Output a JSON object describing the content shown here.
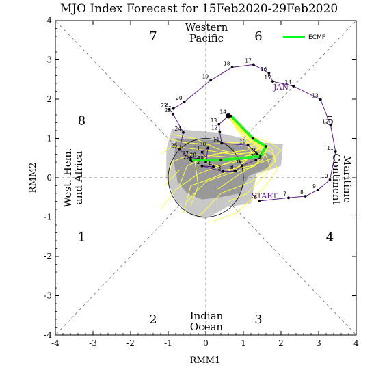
{
  "chart_data": {
    "type": "scatter",
    "title": "MJO Index Forecast for 15Feb2020-29Feb2020",
    "xlabel": "RMM1",
    "ylabel": "RMM2",
    "xlim": [
      -4,
      4
    ],
    "ylim": [
      -4,
      4
    ],
    "xticks": [
      "-4",
      "-3",
      "-2",
      "-1",
      "0",
      "1",
      "2",
      "3",
      "4"
    ],
    "yticks": [
      "-4",
      "-3",
      "-2",
      "-1",
      "0",
      "1",
      "2",
      "3",
      "4"
    ],
    "phase_numbers": [
      {
        "label": "7",
        "x": -1.4,
        "y": 3.6
      },
      {
        "label": "6",
        "x": 1.4,
        "y": 3.6
      },
      {
        "label": "8",
        "x": -3.3,
        "y": 1.45
      },
      {
        "label": "5",
        "x": 3.3,
        "y": 1.45
      },
      {
        "label": "1",
        "x": -3.3,
        "y": -1.5
      },
      {
        "label": "4",
        "x": 3.3,
        "y": -1.5
      },
      {
        "label": "2",
        "x": -1.4,
        "y": -3.6
      },
      {
        "label": "3",
        "x": 1.4,
        "y": -3.6
      }
    ],
    "regions": {
      "western_pacific": [
        "Western",
        "Pacific"
      ],
      "indian_ocean": [
        "Indian",
        "Ocean"
      ],
      "west_hem": [
        "West. Hem.",
        "and Africa"
      ],
      "maritime": [
        "Maritime",
        "Continent"
      ]
    },
    "month_label": "JAN",
    "start_label": "START",
    "observed": {
      "name": "observed",
      "color": "#5a1a8a",
      "points": [
        {
          "d": "6",
          "x": 1.42,
          "y": -0.59
        },
        {
          "d": "7",
          "x": 2.2,
          "y": -0.51
        },
        {
          "d": "8",
          "x": 2.65,
          "y": -0.47
        },
        {
          "d": "9",
          "x": 2.98,
          "y": -0.31
        },
        {
          "d": "10",
          "x": 3.3,
          "y": -0.05
        },
        {
          "d": "11",
          "x": 3.45,
          "y": 0.66
        },
        {
          "d": "12",
          "x": 3.32,
          "y": 1.33
        },
        {
          "d": "13",
          "x": 3.05,
          "y": 1.99
        },
        {
          "d": "14",
          "x": 2.33,
          "y": 2.33
        },
        {
          "d": "15",
          "x": 1.78,
          "y": 2.45
        },
        {
          "d": "16",
          "x": 1.68,
          "y": 2.66
        },
        {
          "d": "17",
          "x": 1.27,
          "y": 2.88
        },
        {
          "d": "18",
          "x": 0.7,
          "y": 2.81
        },
        {
          "d": "19",
          "x": 0.13,
          "y": 2.48
        },
        {
          "d": "20",
          "x": -0.57,
          "y": 1.93
        },
        {
          "d": "21",
          "x": -0.86,
          "y": 1.76
        },
        {
          "d": "22",
          "x": -0.97,
          "y": 1.74
        },
        {
          "d": "23",
          "x": -0.87,
          "y": 1.62
        },
        {
          "d": "24",
          "x": -0.6,
          "y": 1.15
        },
        {
          "d": "25",
          "x": -0.7,
          "y": 0.72
        },
        {
          "d": "26",
          "x": -0.37,
          "y": 0.43
        },
        {
          "d": "27",
          "x": -0.4,
          "y": 0.52
        },
        {
          "d": "28",
          "x": -0.2,
          "y": 0.48
        },
        {
          "d": "29",
          "x": 0.0,
          "y": 0.4
        },
        {
          "d": "30",
          "x": 0.06,
          "y": 0.76
        },
        {
          "d": "31",
          "x": -0.1,
          "y": 0.65
        },
        {
          "d": "1",
          "x": 0.2,
          "y": 0.28
        },
        {
          "d": "2",
          "x": -0.1,
          "y": 0.3
        },
        {
          "d": "3",
          "x": 0.46,
          "y": 0.16
        },
        {
          "d": "4",
          "x": 0.8,
          "y": 0.17
        },
        {
          "d": "5",
          "x": 0.77,
          "y": 0.17
        },
        {
          "d": "6",
          "x": 0.97,
          "y": 0.31
        },
        {
          "d": "7",
          "x": 1.33,
          "y": 0.45
        },
        {
          "d": "8",
          "x": 1.43,
          "y": 0.52
        },
        {
          "d": "9",
          "x": 1.37,
          "y": 0.6
        },
        {
          "d": "10",
          "x": 1.12,
          "y": 0.83
        },
        {
          "d": "11",
          "x": 0.42,
          "y": 0.88
        },
        {
          "d": "12",
          "x": 0.37,
          "y": 1.17
        },
        {
          "d": "13",
          "x": 0.35,
          "y": 1.36
        },
        {
          "d": "14",
          "x": 0.6,
          "y": 1.57
        }
      ]
    },
    "forecast": {
      "name": "ECMF",
      "color": "#22ee22",
      "points": [
        {
          "x": 0.67,
          "y": 1.57
        },
        {
          "x": 1.25,
          "y": 1.0
        },
        {
          "x": 1.6,
          "y": 0.8
        },
        {
          "x": 1.45,
          "y": 0.55
        },
        {
          "x": 0.4,
          "y": 0.45
        },
        {
          "x": -0.4,
          "y": 0.45
        }
      ]
    },
    "ensemble": {
      "color": "#ffff44",
      "members": [
        [
          [
            0.6,
            1.55
          ],
          [
            1.1,
            1.05
          ],
          [
            1.4,
            0.75
          ],
          [
            1.0,
            0.5
          ],
          [
            0.3,
            0.55
          ],
          [
            -0.4,
            0.6
          ],
          [
            -0.9,
            0.4
          ],
          [
            -1.0,
            0.0
          ]
        ],
        [
          [
            0.6,
            1.55
          ],
          [
            1.2,
            1.0
          ],
          [
            1.6,
            0.7
          ],
          [
            1.3,
            0.3
          ],
          [
            0.6,
            0.1
          ],
          [
            0.0,
            -0.1
          ],
          [
            -0.5,
            -0.6
          ]
        ],
        [
          [
            0.6,
            1.55
          ],
          [
            1.0,
            1.1
          ],
          [
            1.2,
            0.9
          ],
          [
            0.8,
            0.9
          ],
          [
            0.0,
            0.85
          ],
          [
            -0.6,
            0.9
          ],
          [
            -1.0,
            1.0
          ]
        ],
        [
          [
            0.6,
            1.55
          ],
          [
            1.3,
            0.95
          ],
          [
            1.8,
            0.6
          ],
          [
            1.9,
            0.2
          ],
          [
            1.5,
            -0.3
          ],
          [
            0.8,
            -0.9
          ],
          [
            0.2,
            -1.1
          ]
        ],
        [
          [
            0.6,
            1.55
          ],
          [
            1.1,
            1.0
          ],
          [
            1.5,
            0.8
          ],
          [
            1.2,
            0.6
          ],
          [
            0.5,
            0.35
          ],
          [
            -0.2,
            0.1
          ],
          [
            -0.8,
            -0.3
          ],
          [
            -1.2,
            -0.8
          ]
        ],
        [
          [
            0.6,
            1.55
          ],
          [
            1.2,
            1.05
          ],
          [
            1.7,
            0.9
          ],
          [
            2.0,
            0.7
          ],
          [
            1.8,
            0.5
          ],
          [
            1.2,
            0.3
          ],
          [
            0.5,
            0.2
          ]
        ],
        [
          [
            0.6,
            1.55
          ],
          [
            1.0,
            1.05
          ],
          [
            1.3,
            0.7
          ],
          [
            0.9,
            0.3
          ],
          [
            0.2,
            0.0
          ],
          [
            -0.4,
            -0.2
          ],
          [
            -0.6,
            -0.9
          ]
        ],
        [
          [
            0.6,
            1.55
          ],
          [
            1.2,
            1.0
          ],
          [
            1.6,
            0.85
          ],
          [
            1.4,
            0.65
          ],
          [
            0.7,
            0.6
          ],
          [
            0.0,
            0.7
          ],
          [
            -0.9,
            0.8
          ],
          [
            -1.2,
            0.6
          ]
        ],
        [
          [
            0.6,
            1.55
          ],
          [
            1.15,
            1.0
          ],
          [
            1.55,
            0.7
          ],
          [
            1.7,
            0.3
          ],
          [
            1.2,
            -0.1
          ],
          [
            0.4,
            -0.4
          ],
          [
            -0.2,
            -1.0
          ]
        ],
        [
          [
            0.6,
            1.55
          ],
          [
            1.05,
            1.1
          ],
          [
            1.35,
            0.9
          ],
          [
            1.1,
            0.7
          ],
          [
            0.2,
            0.6
          ],
          [
            -0.5,
            0.3
          ],
          [
            -0.7,
            -0.2
          ]
        ],
        [
          [
            0.6,
            1.55
          ],
          [
            1.2,
            1.05
          ],
          [
            1.65,
            0.8
          ],
          [
            1.5,
            0.45
          ],
          [
            0.9,
            0.1
          ],
          [
            0.3,
            -0.3
          ],
          [
            0.3,
            -0.9
          ]
        ],
        [
          [
            0.6,
            1.55
          ],
          [
            1.1,
            1.0
          ],
          [
            1.45,
            0.75
          ],
          [
            1.2,
            0.55
          ],
          [
            0.4,
            0.7
          ],
          [
            -0.3,
            1.0
          ],
          [
            -0.9,
            1.1
          ]
        ],
        [
          [
            0.6,
            1.55
          ],
          [
            1.25,
            1.0
          ],
          [
            1.75,
            0.75
          ],
          [
            1.85,
            0.45
          ],
          [
            1.6,
            0.1
          ],
          [
            1.1,
            -0.4
          ],
          [
            0.6,
            -0.6
          ]
        ],
        [
          [
            0.6,
            1.55
          ],
          [
            1.0,
            1.0
          ],
          [
            1.25,
            0.6
          ],
          [
            0.8,
            0.2
          ],
          [
            0.0,
            0.2
          ],
          [
            -0.7,
            0.2
          ],
          [
            -1.1,
            -0.2
          ]
        ],
        [
          [
            0.6,
            1.55
          ],
          [
            1.2,
            0.95
          ],
          [
            1.5,
            0.65
          ],
          [
            1.0,
            0.45
          ],
          [
            0.3,
            0.3
          ],
          [
            -0.3,
            0.5
          ],
          [
            -0.2,
            -0.2
          ],
          [
            -0.4,
            -0.7
          ]
        ]
      ]
    },
    "spread": {
      "outer": [
        [
          -0.9,
          1.25
        ],
        [
          0.3,
          1.15
        ],
        [
          1.5,
          0.9
        ],
        [
          2.05,
          0.85
        ],
        [
          2.0,
          0.3
        ],
        [
          1.35,
          0.1
        ],
        [
          1.2,
          -0.65
        ],
        [
          0.55,
          -0.75
        ],
        [
          0.0,
          -1.05
        ],
        [
          -0.4,
          -0.95
        ],
        [
          -0.8,
          -0.6
        ],
        [
          -1.05,
          0.0
        ],
        [
          -1.05,
          0.7
        ]
      ],
      "inner": [
        [
          -0.8,
          1.0
        ],
        [
          0.3,
          0.95
        ],
        [
          1.3,
          0.75
        ],
        [
          1.8,
          0.55
        ],
        [
          1.65,
          0.25
        ],
        [
          1.15,
          0.05
        ],
        [
          0.9,
          -0.4
        ],
        [
          0.35,
          -0.5
        ],
        [
          -0.1,
          -0.55
        ],
        [
          -0.5,
          -0.4
        ],
        [
          -0.75,
          -0.1
        ],
        [
          -0.85,
          0.4
        ]
      ]
    }
  },
  "legend": {
    "label": "ECMF",
    "color": "#00ff22"
  }
}
